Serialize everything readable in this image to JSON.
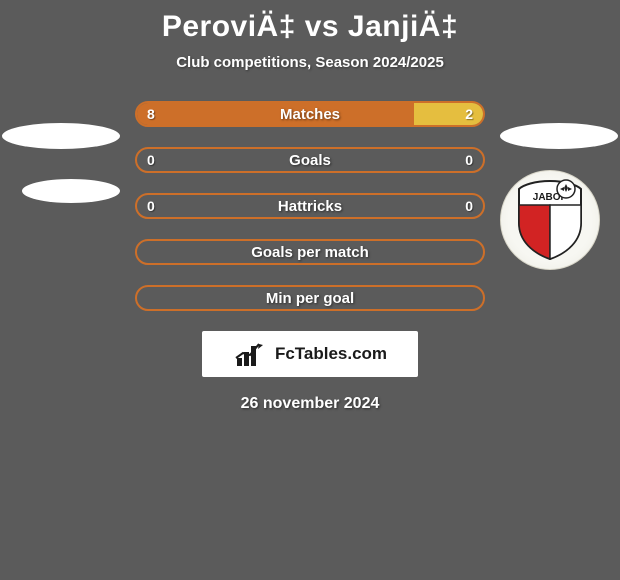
{
  "title": "PeroviÄ‡ vs JanjiÄ‡",
  "subtitle": "Club competitions, Season 2024/2025",
  "colors": {
    "background": "#5b5b5b",
    "text": "#ffffff",
    "left_accent": "#cd6f29",
    "right_accent": "#e5be3f",
    "empty_fill": "#5b5b5b"
  },
  "bars": [
    {
      "label": "Matches",
      "left_val": "8",
      "right_val": "2",
      "left_pct": 80,
      "right_pct": 20,
      "left_color": "#cd6f29",
      "right_color": "#e5be3f",
      "border": "#cd6f29"
    },
    {
      "label": "Goals",
      "left_val": "0",
      "right_val": "0",
      "left_pct": 50,
      "right_pct": 50,
      "left_color": "transparent",
      "right_color": "transparent",
      "border": "#cd6f29"
    },
    {
      "label": "Hattricks",
      "left_val": "0",
      "right_val": "0",
      "left_pct": 50,
      "right_pct": 50,
      "left_color": "transparent",
      "right_color": "transparent",
      "border": "#cd6f29"
    },
    {
      "label": "Goals per match",
      "left_val": "",
      "right_val": "",
      "left_pct": 50,
      "right_pct": 50,
      "left_color": "transparent",
      "right_color": "transparent",
      "border": "#cd6f29"
    },
    {
      "label": "Min per goal",
      "left_val": "",
      "right_val": "",
      "left_pct": 50,
      "right_pct": 50,
      "left_color": "transparent",
      "right_color": "transparent",
      "border": "#cd6f29"
    }
  ],
  "logo_text": "FcTables.com",
  "date": "26 november 2024",
  "crest": {
    "shield_top_color": "#ffffff",
    "shield_left_color": "#d22323",
    "shield_right_color": "#ffffff",
    "outline": "#222222",
    "text": "JABOP"
  }
}
